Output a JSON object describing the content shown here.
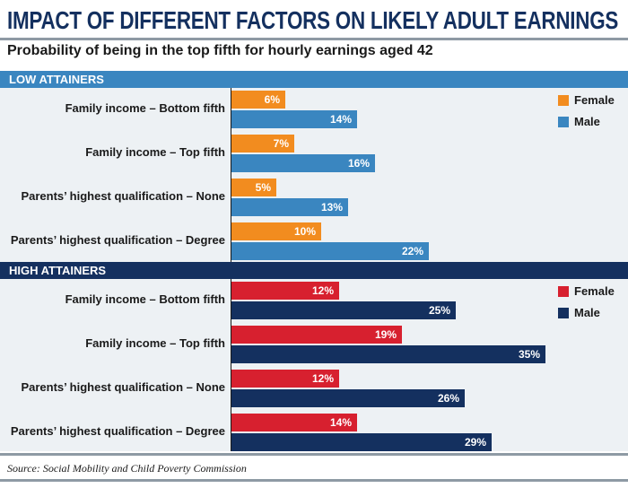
{
  "chart_data": [
    {
      "type": "bar",
      "title": "IMPACT OF DIFFERENT FACTORS ON LIKELY ADULT EARNINGS",
      "subtitle": "Probability of being in the top fifth for hourly earnings aged 42",
      "section": "LOW ATTAINERS",
      "categories": [
        "Family income – Bottom fifth",
        "Family income – Top fifth",
        "Parents’ highest qualification – None",
        "Parents’ highest qualification – Degree"
      ],
      "series": [
        {
          "name": "Female",
          "values": [
            6,
            7,
            5,
            10
          ],
          "labels": [
            "6%",
            "7%",
            "5%",
            "10%"
          ],
          "color": "#f28c1f"
        },
        {
          "name": "Male",
          "values": [
            14,
            16,
            13,
            22
          ],
          "labels": [
            "14%",
            "16%",
            "13%",
            "22%"
          ],
          "color": "#3a86c0"
        }
      ],
      "unit": "%",
      "orientation": "horizontal",
      "legend_position": "top-right",
      "header_color": "#3a86c0"
    },
    {
      "type": "bar",
      "section": "HIGH ATTAINERS",
      "categories": [
        "Family income – Bottom fifth",
        "Family income – Top fifth",
        "Parents’ highest qualification – None",
        "Parents’ highest qualification – Degree"
      ],
      "series": [
        {
          "name": "Female",
          "values": [
            12,
            19,
            12,
            14
          ],
          "labels": [
            "12%",
            "19%",
            "12%",
            "14%"
          ],
          "color": "#d7202f"
        },
        {
          "name": "Male",
          "values": [
            25,
            35,
            26,
            29
          ],
          "labels": [
            "25%",
            "35%",
            "26%",
            "29%"
          ],
          "color": "#14305f"
        }
      ],
      "unit": "%",
      "orientation": "horizontal",
      "legend_position": "top-right",
      "header_color": "#14305f"
    }
  ],
  "source": "Source: Social Mobility and Child Poverty Commission"
}
